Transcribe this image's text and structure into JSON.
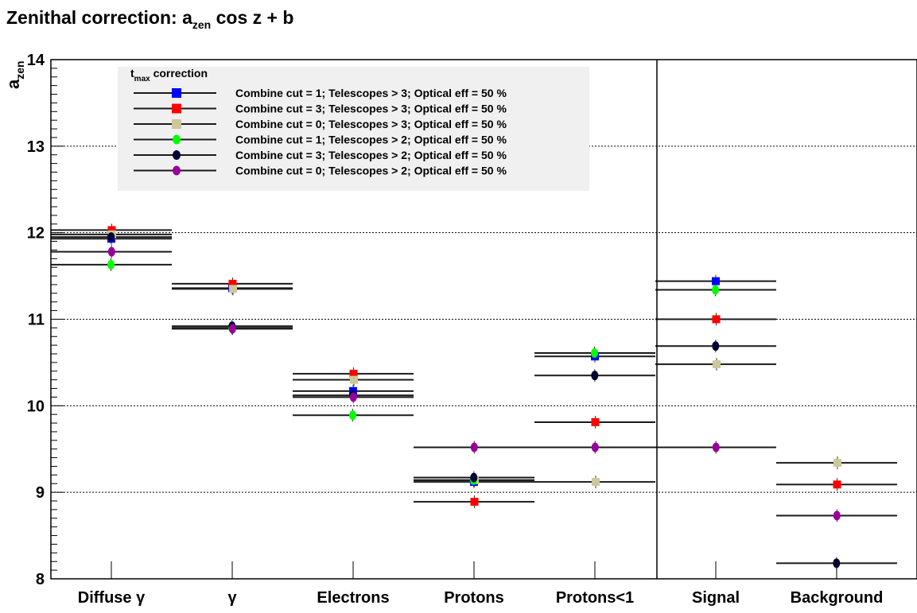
{
  "chart_data": {
    "type": "scatter",
    "title": "Zenithal correction: a",
    "title_sub": "zen",
    "title_rest": " cos z + b",
    "ylabel": "a",
    "ylabel_sub": "zen",
    "ylim": [
      8,
      14
    ],
    "y_ticks": [
      "8",
      "9",
      "10",
      "11",
      "12",
      "13",
      "14"
    ],
    "grid": "horizontal dotted",
    "categories": [
      "Diffuse γ",
      "γ",
      "Electrons",
      "Protons",
      "Protons<1",
      "Signal",
      "Background"
    ],
    "legend": {
      "placement": "top-left",
      "header": "t",
      "header_sub": "max",
      "header_rest": " correction"
    },
    "series": [
      {
        "name": "Combine cut = 1; Telescopes > 3; Optical eff = 50 %",
        "color": "#0000ff",
        "marker": "square",
        "values": [
          11.93,
          11.36,
          10.17,
          9.12,
          10.57,
          11.44,
          null
        ]
      },
      {
        "name": "Combine cut = 3; Telescopes > 3; Optical eff = 50 %",
        "color": "#ff0000",
        "marker": "square",
        "values": [
          12.03,
          11.41,
          10.37,
          8.89,
          9.81,
          11.0,
          9.09
        ]
      },
      {
        "name": "Combine cut = 0; Telescopes > 3; Optical eff = 50 %",
        "color": "#cdc79a",
        "marker": "square",
        "values": [
          11.98,
          11.35,
          10.3,
          9.14,
          9.12,
          10.48,
          9.34
        ]
      },
      {
        "name": "Combine cut = 1; Telescopes > 2; Optical eff = 50 %",
        "color": "#00ff00",
        "marker": "circle",
        "values": [
          11.63,
          10.9,
          9.89,
          9.14,
          10.61,
          11.34,
          null
        ]
      },
      {
        "name": "Combine cut = 3; Telescopes > 2; Optical eff = 50 %",
        "color": "#000033",
        "marker": "circle",
        "values": [
          11.95,
          10.92,
          10.12,
          9.17,
          10.35,
          10.69,
          8.18
        ]
      },
      {
        "name": "Combine cut = 0; Telescopes > 2; Optical eff = 50 %",
        "color": "#990099",
        "marker": "circle",
        "values": [
          11.78,
          10.89,
          10.1,
          9.52,
          9.52,
          9.52,
          8.73
        ]
      }
    ]
  }
}
